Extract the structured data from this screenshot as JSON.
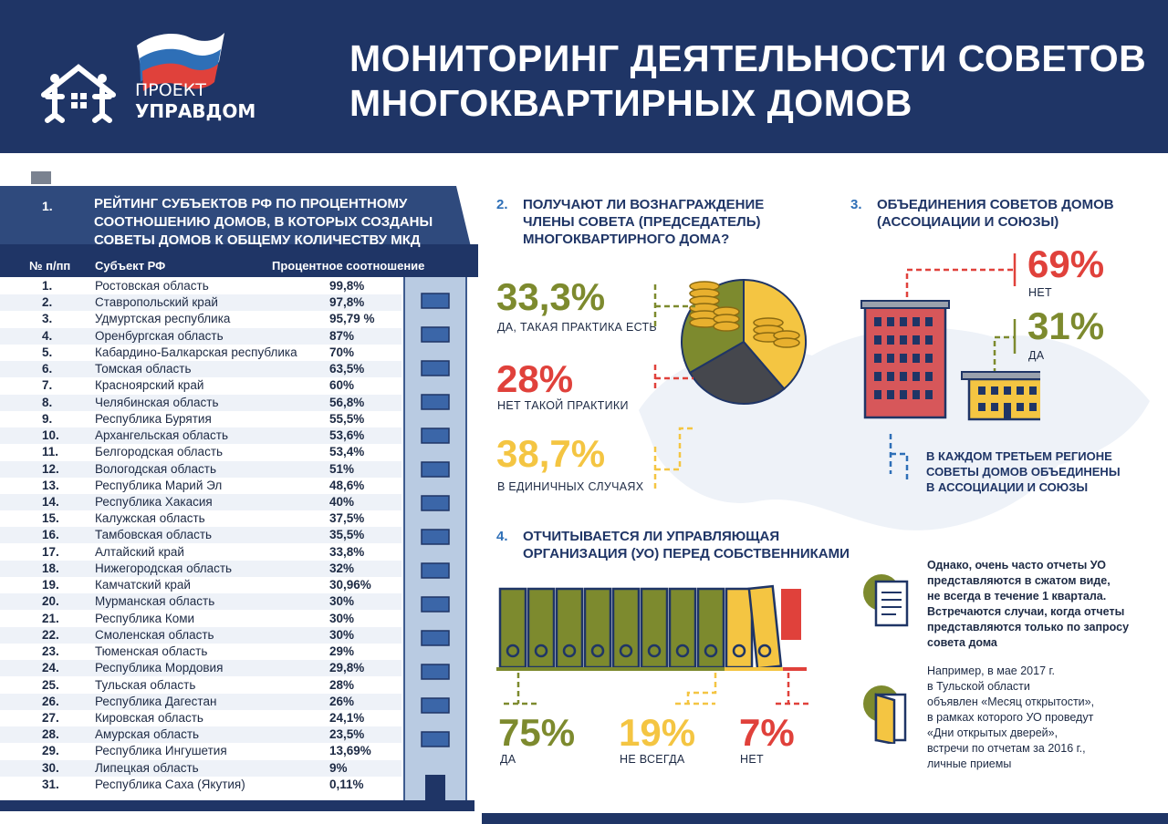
{
  "colors": {
    "navy": "#1f3566",
    "blue": "#2e6fb7",
    "olive": "#7d8a2e",
    "yellow": "#f4c542",
    "red": "#e0413b",
    "gray": "#45474d"
  },
  "logo": {
    "line1": "ПРОЕКТ",
    "line2": "УПРАВДОМ"
  },
  "title": {
    "line1": "МОНИТОРИНГ ДЕЯТЕЛЬНОСТИ СОВЕТОВ",
    "line2": "МНОГОКВАРТИРНЫХ ДОМОВ"
  },
  "ranking": {
    "number": "1.",
    "heading": [
      "РЕЙТИНГ СУБЪЕКТОВ РФ ПО ПРОЦЕНТНОМУ",
      "СООТНОШЕНИЮ ДОМОВ, В КОТОРЫХ СОЗДАНЫ",
      "СОВЕТЫ ДОМОВ К ОБЩЕМУ КОЛИЧЕСТВУ МКД"
    ],
    "col_num": "№ п/пп",
    "col_subject": "Субъект РФ",
    "col_percent": "Процентное соотношение",
    "rows": [
      [
        "1.",
        "Ростовская область",
        "99,8%"
      ],
      [
        "2.",
        "Ставропольский край",
        "97,8%"
      ],
      [
        "3.",
        "Удмуртская республика",
        "95,79 %"
      ],
      [
        "4.",
        "Оренбургская область",
        "87%"
      ],
      [
        "5.",
        "Кабардино-Балкарская республика",
        "70%"
      ],
      [
        "6.",
        "Томская область",
        "63,5%"
      ],
      [
        "7.",
        "Красноярский край",
        "60%"
      ],
      [
        "8.",
        "Челябинская область",
        "56,8%"
      ],
      [
        "9.",
        "Республика Бурятия",
        "55,5%"
      ],
      [
        "10.",
        "Архангельская область",
        "53,6%"
      ],
      [
        "11.",
        "Белгородская область",
        "53,4%"
      ],
      [
        "12.",
        "Вологодская область",
        "51%"
      ],
      [
        "13.",
        "Республика Марий Эл",
        "48,6%"
      ],
      [
        "14.",
        "Республика Хакасия",
        "40%"
      ],
      [
        "15.",
        "Калужская область",
        "37,5%"
      ],
      [
        "16.",
        "Тамбовская область",
        "35,5%"
      ],
      [
        "17.",
        "Алтайский край",
        "33,8%"
      ],
      [
        "18.",
        "Нижегородская область",
        "32%"
      ],
      [
        "19.",
        "Камчатский край",
        "30,96%"
      ],
      [
        "20.",
        "Мурманская область",
        "30%"
      ],
      [
        "21.",
        "Республика Коми",
        "30%"
      ],
      [
        "22.",
        "Смоленская область",
        "30%"
      ],
      [
        "23.",
        "Тюменская область",
        "29%"
      ],
      [
        "24.",
        "Республика Мордовия",
        "29,8%"
      ],
      [
        "25.",
        "Тульская область",
        "28%"
      ],
      [
        "26.",
        "Республика Дагестан",
        "26%"
      ],
      [
        "27.",
        "Кировская область",
        "24,1%"
      ],
      [
        "28.",
        "Амурская область",
        "23,5%"
      ],
      [
        "29.",
        "Республика Ингушетия",
        "13,69%"
      ],
      [
        "30.",
        "Липецкая область",
        "9%"
      ],
      [
        "31.",
        "Республика Саха (Якутия)",
        "0,11%"
      ]
    ]
  },
  "reward": {
    "number": "2.",
    "heading": [
      "ПОЛУЧАЮТ ЛИ ВОЗНАГРАЖДЕНИЕ",
      "ЧЛЕНЫ СОВЕТА (ПРЕДСЕДАТЕЛЬ)",
      "МНОГОКВАРТИРНОГО ДОМА?"
    ],
    "items": [
      {
        "value": "33,3%",
        "label": "ДА, ТАКАЯ ПРАКТИКА ЕСТЬ",
        "share": 33.3
      },
      {
        "value": "28%",
        "label": "НЕТ ТАКОЙ ПРАКТИКИ",
        "share": 28
      },
      {
        "value": "38,7%",
        "label": "В ЕДИНИЧНЫХ  СЛУЧАЯХ",
        "share": 38.7
      }
    ]
  },
  "associations": {
    "number": "3.",
    "heading": [
      "ОБЪЕДИНЕНИЯ СОВЕТОВ ДОМОВ",
      "(АССОЦИАЦИИ И СОЮЗЫ)"
    ],
    "no_value": "69%",
    "no_label": "НЕТ",
    "yes_value": "31%",
    "yes_label": "ДА",
    "caption": [
      "В КАЖДОМ ТРЕТЬЕМ РЕГИОНЕ",
      "СОВЕТЫ ДОМОВ ОБЪЕДИНЕНЫ",
      "В АССОЦИАЦИИ И СОЮЗЫ"
    ]
  },
  "reporting": {
    "number": "4.",
    "heading": [
      "ОТЧИТЫВАЕТСЯ ЛИ УПРАВЛЯЮЩАЯ",
      "ОРГАНИЗАЦИЯ (УО) ПЕРЕД СОБСТВЕННИКАМИ"
    ],
    "items": [
      {
        "value": "75%",
        "label": "ДА",
        "share": 75
      },
      {
        "value": "19%",
        "label": "НЕ ВСЕГДА",
        "share": 19
      },
      {
        "value": "7%",
        "label": "НЕТ",
        "share": 7
      }
    ],
    "note1": [
      "Однако, очень часто отчеты УО",
      "представляются в сжатом виде,",
      "не всегда в течение 1  квартала.",
      "Встречаются случаи, когда отчеты",
      "представляются только по запросу",
      "совета дома"
    ],
    "note2": [
      "Например, в мае 2017 г.",
      "в Тульской области",
      "объявлен «Месяц открытости»,",
      "в рамках которого УО проведут",
      "«Дни открытых дверей»,",
      "встречи по отчетам за 2016 г.,",
      "личные приемы"
    ]
  }
}
